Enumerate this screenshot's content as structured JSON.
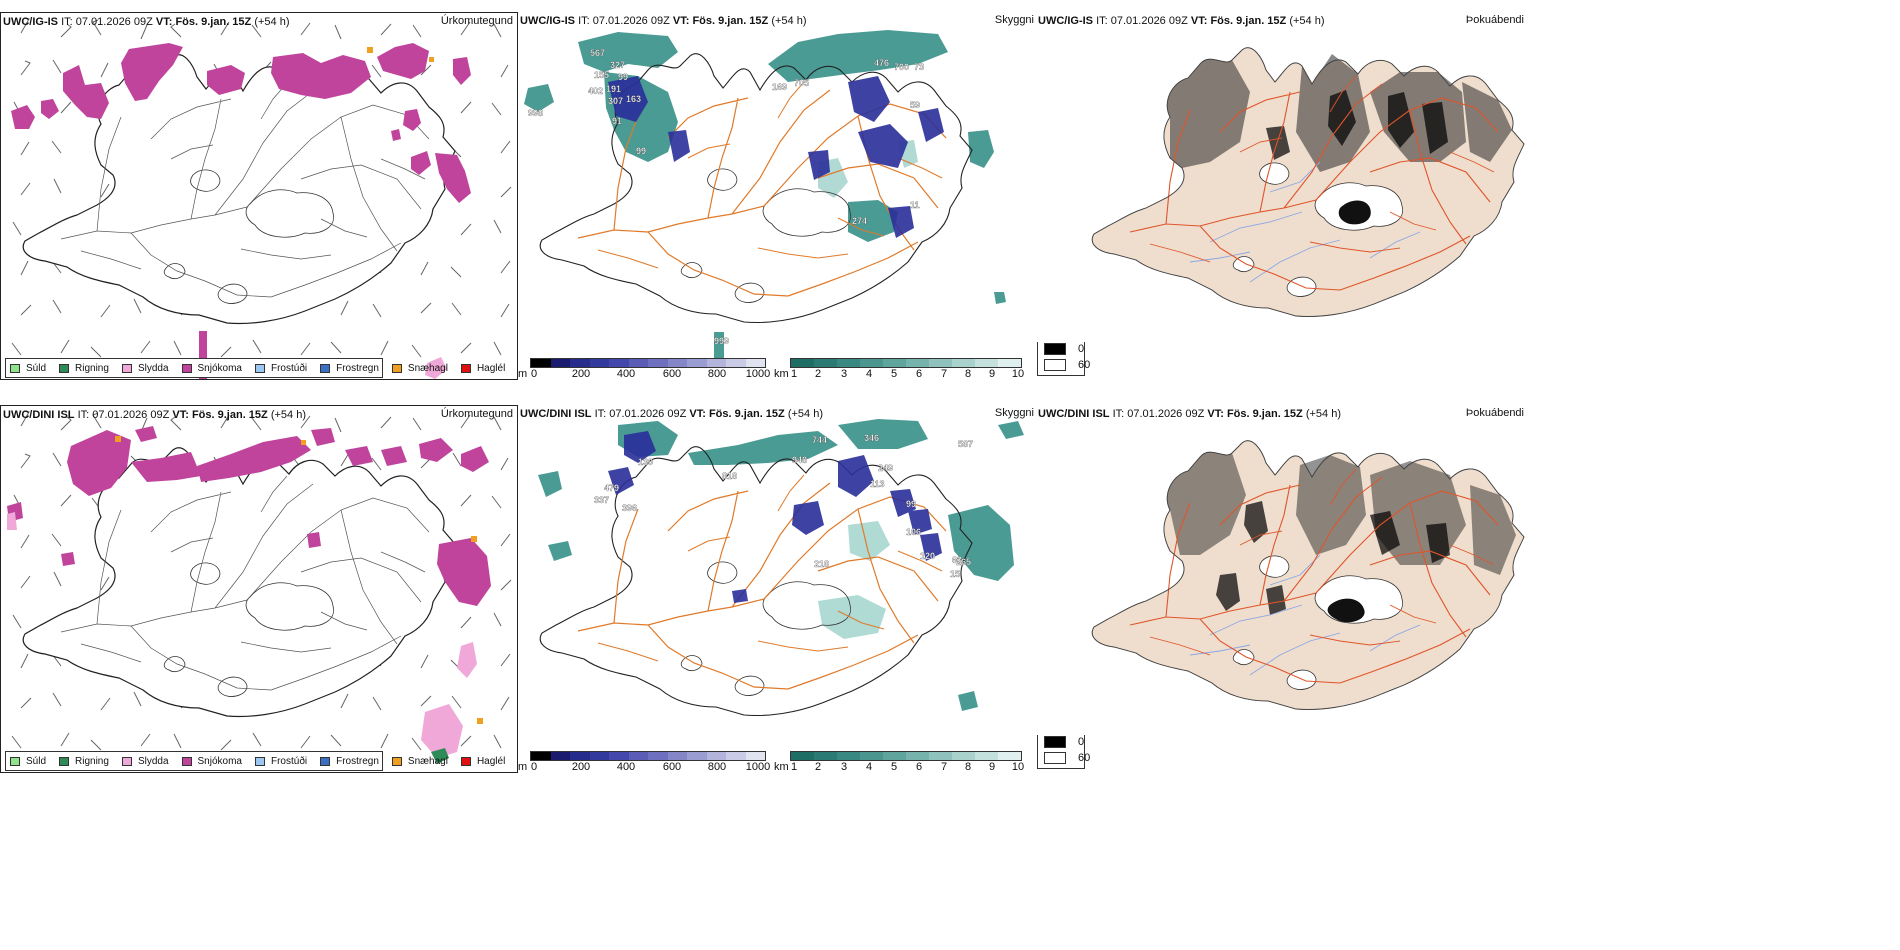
{
  "rows": [
    {
      "model": "UWC/IG-IS",
      "it_label": "IT:",
      "it_value": "07.01.2026 09Z",
      "vt_label": "VT:",
      "vt_value": "Fös. 9.jan. 15Z",
      "lead": "(+54 h)"
    },
    {
      "model": "UWC/DINI ISL",
      "it_label": "IT:",
      "it_value": "07.01.2026 09Z",
      "vt_label": "VT:",
      "vt_value": "Fös. 9.jan. 15Z",
      "lead": "(+54 h)"
    }
  ],
  "titles": {
    "precip_type": "Úrkomutegund",
    "visibility": "Skyggni",
    "fog": "Þokuábendi"
  },
  "precip_legend": [
    {
      "label": "Súld",
      "color": "#8fe38b"
    },
    {
      "label": "Rigning",
      "color": "#2e8b57"
    },
    {
      "label": "Slydda",
      "color": "#f0a8d8"
    },
    {
      "label": "Snjókoma",
      "color": "#c0449c"
    },
    {
      "label": "Frostúði",
      "color": "#9cc7f0"
    },
    {
      "label": "Frostregn",
      "color": "#3a6fc4"
    },
    {
      "label": "Snæhagl",
      "color": "#f0a020"
    },
    {
      "label": "Haglél",
      "color": "#e01010"
    }
  ],
  "colorbar_m": {
    "unit": "m",
    "ticks": [
      "0",
      "200",
      "400",
      "600",
      "800",
      "1000"
    ],
    "colors": [
      "#000000",
      "#1a1a6e",
      "#252c8c",
      "#333a9e",
      "#4447ab",
      "#5a5cb5",
      "#6e70bf",
      "#8486c8",
      "#9a9dd2",
      "#b2b4dc",
      "#cacbe6",
      "#e2e3f0"
    ]
  },
  "colorbar_km": {
    "unit": "km",
    "ticks": [
      "1",
      "2",
      "3",
      "4",
      "5",
      "6",
      "7",
      "8",
      "9",
      "10"
    ],
    "colors": [
      "#1e6e66",
      "#2b7b74",
      "#3a8882",
      "#4c9690",
      "#60a49e",
      "#77b3ad",
      "#8fc2bd",
      "#a9d2cd",
      "#c4e1de",
      "#e0f0ee"
    ]
  },
  "cloud_legend": {
    "dark_label": "0",
    "light_label": "60"
  },
  "vis_labels_top": [
    "998",
    "567",
    "155",
    "327",
    "99",
    "402",
    "191",
    "307",
    "163",
    "91",
    "99",
    "169",
    "705",
    "476",
    "700",
    "73",
    "59",
    "274",
    "11",
    "999"
  ],
  "vis_labels_bottom": [
    "130",
    "479",
    "337",
    "396",
    "818",
    "948",
    "744",
    "346",
    "249",
    "113",
    "99",
    "120",
    "63",
    "265",
    "15",
    "218",
    "106",
    "587"
  ]
}
